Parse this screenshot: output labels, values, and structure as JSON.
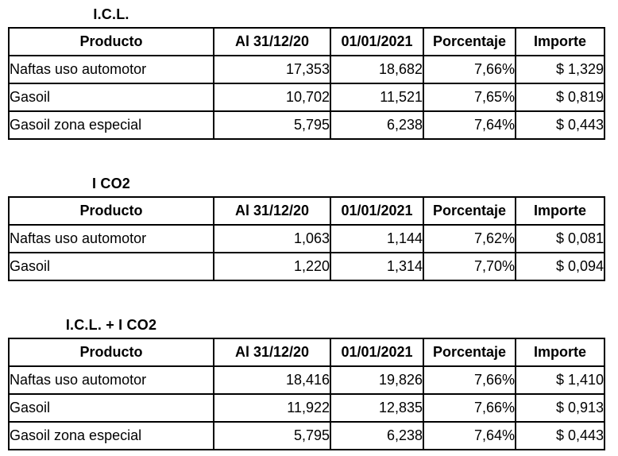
{
  "columns": [
    "Producto",
    "Al 31/12/20",
    "01/01/2021",
    "Porcentaje",
    "Importe"
  ],
  "tables": [
    {
      "title": "I.C.L.",
      "rows": [
        [
          "Naftas uso automotor",
          "17,353",
          "18,682",
          "7,66%",
          "$ 1,329"
        ],
        [
          "Gasoil",
          "10,702",
          "11,521",
          "7,65%",
          "$ 0,819"
        ],
        [
          "Gasoil zona especial",
          "5,795",
          "6,238",
          "7,64%",
          "$ 0,443"
        ]
      ]
    },
    {
      "title": "I CO2",
      "rows": [
        [
          "Naftas uso automotor",
          "1,063",
          "1,144",
          "7,62%",
          "$ 0,081"
        ],
        [
          "Gasoil",
          "1,220",
          "1,314",
          "7,70%",
          "$ 0,094"
        ]
      ]
    },
    {
      "title": "I.C.L. + I CO2",
      "rows": [
        [
          "Naftas uso automotor",
          "18,416",
          "19,826",
          "7,66%",
          "$ 1,410"
        ],
        [
          "Gasoil",
          "11,922",
          "12,835",
          "7,66%",
          "$ 0,913"
        ],
        [
          "Gasoil zona especial",
          "5,795",
          "6,238",
          "7,64%",
          "$ 0,443"
        ]
      ]
    }
  ],
  "colors": {
    "background": "#ffffff",
    "border": "#000000",
    "text": "#000000"
  }
}
